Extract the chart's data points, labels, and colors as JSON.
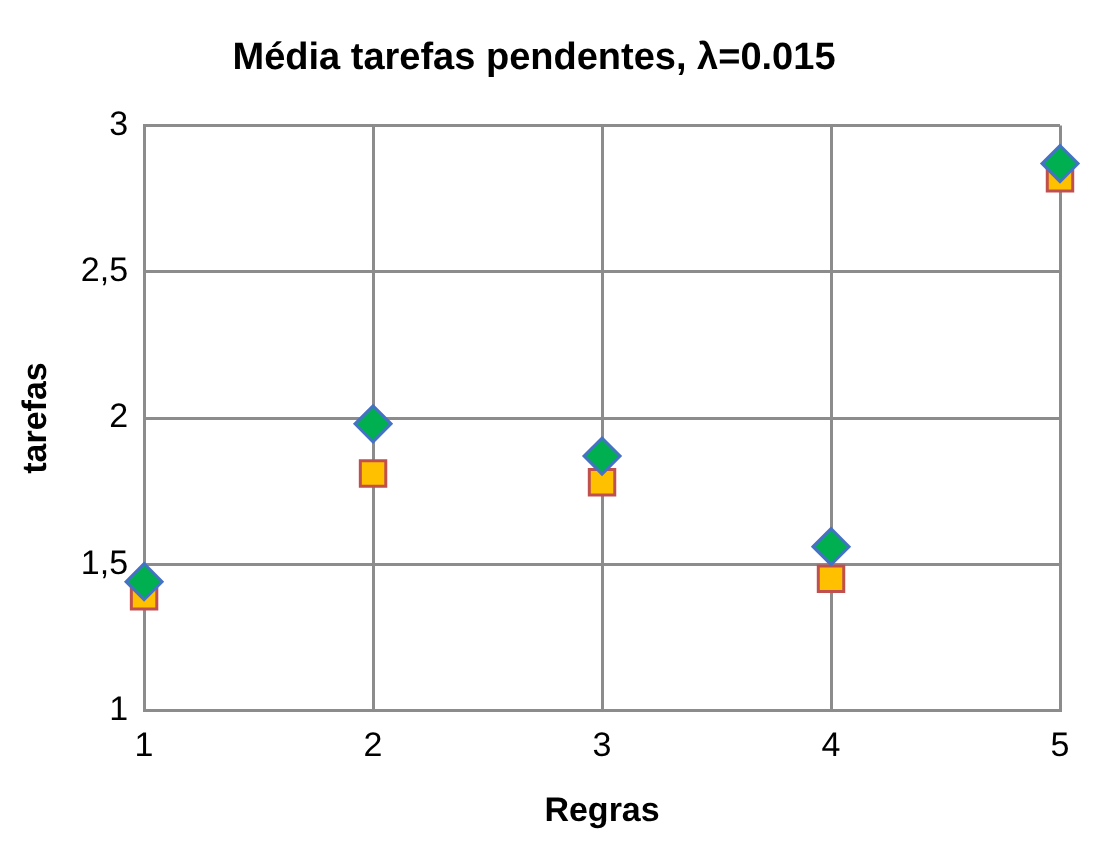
{
  "chart_data": {
    "type": "scatter",
    "title": "Média tarefas pendentes, λ=0.015",
    "xlabel": "Regras",
    "ylabel": "tarefas",
    "x": [
      1,
      2,
      3,
      4,
      5
    ],
    "series": [
      {
        "color": "#00b050",
        "marker": "diamond",
        "values": [
          1.44,
          1.98,
          1.87,
          1.56,
          2.87
        ]
      },
      {
        "color": "#ffc000",
        "marker": "square",
        "values": [
          1.39,
          1.81,
          1.78,
          1.45,
          2.82
        ]
      }
    ],
    "xlim": [
      1,
      5
    ],
    "xticks": [
      1,
      2,
      3,
      4,
      5
    ],
    "ylim": [
      1,
      3
    ],
    "yticks": [
      1,
      {
        "value": 1.5,
        "label": "1,5"
      },
      2,
      {
        "value": 2.5,
        "label": "2,5"
      },
      3
    ],
    "grid": true,
    "legend": false
  }
}
